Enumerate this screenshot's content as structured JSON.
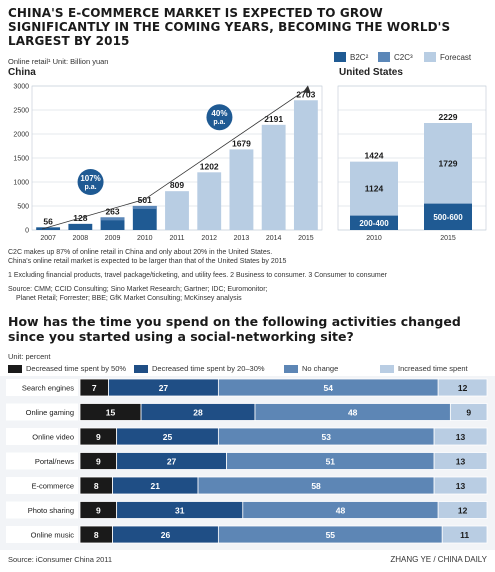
{
  "title_lines": [
    "CHINA'S E-COMMERCE MARKET IS EXPECTED TO GROW",
    "SIGNIFICANTLY IN THE COMING YEARS, BECOMING THE WORLD'S",
    "LARGEST BY 2015"
  ],
  "legend_top": [
    {
      "label": "B2C²",
      "color": "#1f5a93"
    },
    {
      "label": "C2C³",
      "color": "#5b87b8"
    },
    {
      "label": "Forecast",
      "color": "#b8cde3"
    }
  ],
  "retail_note": "Online retail¹   Unit: Billion yuan",
  "china_label": "China",
  "us_label": "United States",
  "growth_badges": [
    "107% p.a.",
    "40% p.a."
  ],
  "notes": [
    "C2C makes up 87% of online retail in China and only about 20% in the United States.",
    "China's online retail market is expected to be larger than that of the United States by 2015"
  ],
  "footnotes": "1 Excluding financial products, travel package/ticketing, and utility fees.          2 Business to consumer.          3 Consumer to consumer",
  "source1_lines": [
    "Source: CMM; CCID Consulting; Sino Market Research; Gartner; IDC; Euromonitor;",
    "Planet Retail; Forrester; BBE; GfK Market Consulting; McKinsey analysis"
  ],
  "q2_title_lines": [
    "How has the time you spend on the following activities changed",
    "since you started using a social-networking site?"
  ],
  "q2_unit": "Unit: percent",
  "legend_q2": [
    {
      "label": "Decreased time spent by 50%",
      "color": "#1a1a1a"
    },
    {
      "label": "Decreased time spent by 20–30%",
      "color": "#1f4e85"
    },
    {
      "label": "No change",
      "color": "#5d86b5"
    },
    {
      "label": "Increased time spent",
      "color": "#b9cde3"
    }
  ],
  "source2": "Source: iConsumer China 2011",
  "credit": "ZHANG YE / CHINA DAILY",
  "chart_data": [
    {
      "type": "bar",
      "title": "China",
      "categories": [
        "2007",
        "2008",
        "2009",
        "2010",
        "2011",
        "2012",
        "2013",
        "2014",
        "2015"
      ],
      "values": [
        56,
        128,
        263,
        501,
        809,
        1202,
        1679,
        2191,
        2703
      ],
      "forecast_from": "2011",
      "ylim": [
        0,
        3000
      ],
      "yticks": [
        0,
        500,
        1000,
        1500,
        2000,
        2500,
        3000
      ],
      "grid": true
    },
    {
      "type": "bar",
      "title": "United States",
      "categories": [
        "2010",
        "2015"
      ],
      "totals": [
        1424,
        2229
      ],
      "series": [
        {
          "name": "B2C",
          "values": [
            "200-400",
            "500-600"
          ]
        },
        {
          "name": "C2C",
          "values": [
            1124,
            1729
          ]
        }
      ]
    },
    {
      "type": "bar",
      "stacked": true,
      "horizontal": true,
      "unit": "percent",
      "categories": [
        "Search engines",
        "Online gaming",
        "Online video",
        "Portal/news",
        "E-commerce",
        "Photo sharing",
        "Online music"
      ],
      "series": [
        {
          "name": "Decreased time spent by 50%",
          "values": [
            7,
            15,
            9,
            9,
            8,
            9,
            8
          ]
        },
        {
          "name": "Decreased time spent by 20–30%",
          "values": [
            27,
            28,
            25,
            27,
            21,
            31,
            26
          ]
        },
        {
          "name": "No change",
          "values": [
            54,
            48,
            53,
            51,
            58,
            48,
            55
          ]
        },
        {
          "name": "Increased time spent",
          "values": [
            12,
            9,
            13,
            13,
            13,
            12,
            11
          ]
        }
      ]
    }
  ]
}
